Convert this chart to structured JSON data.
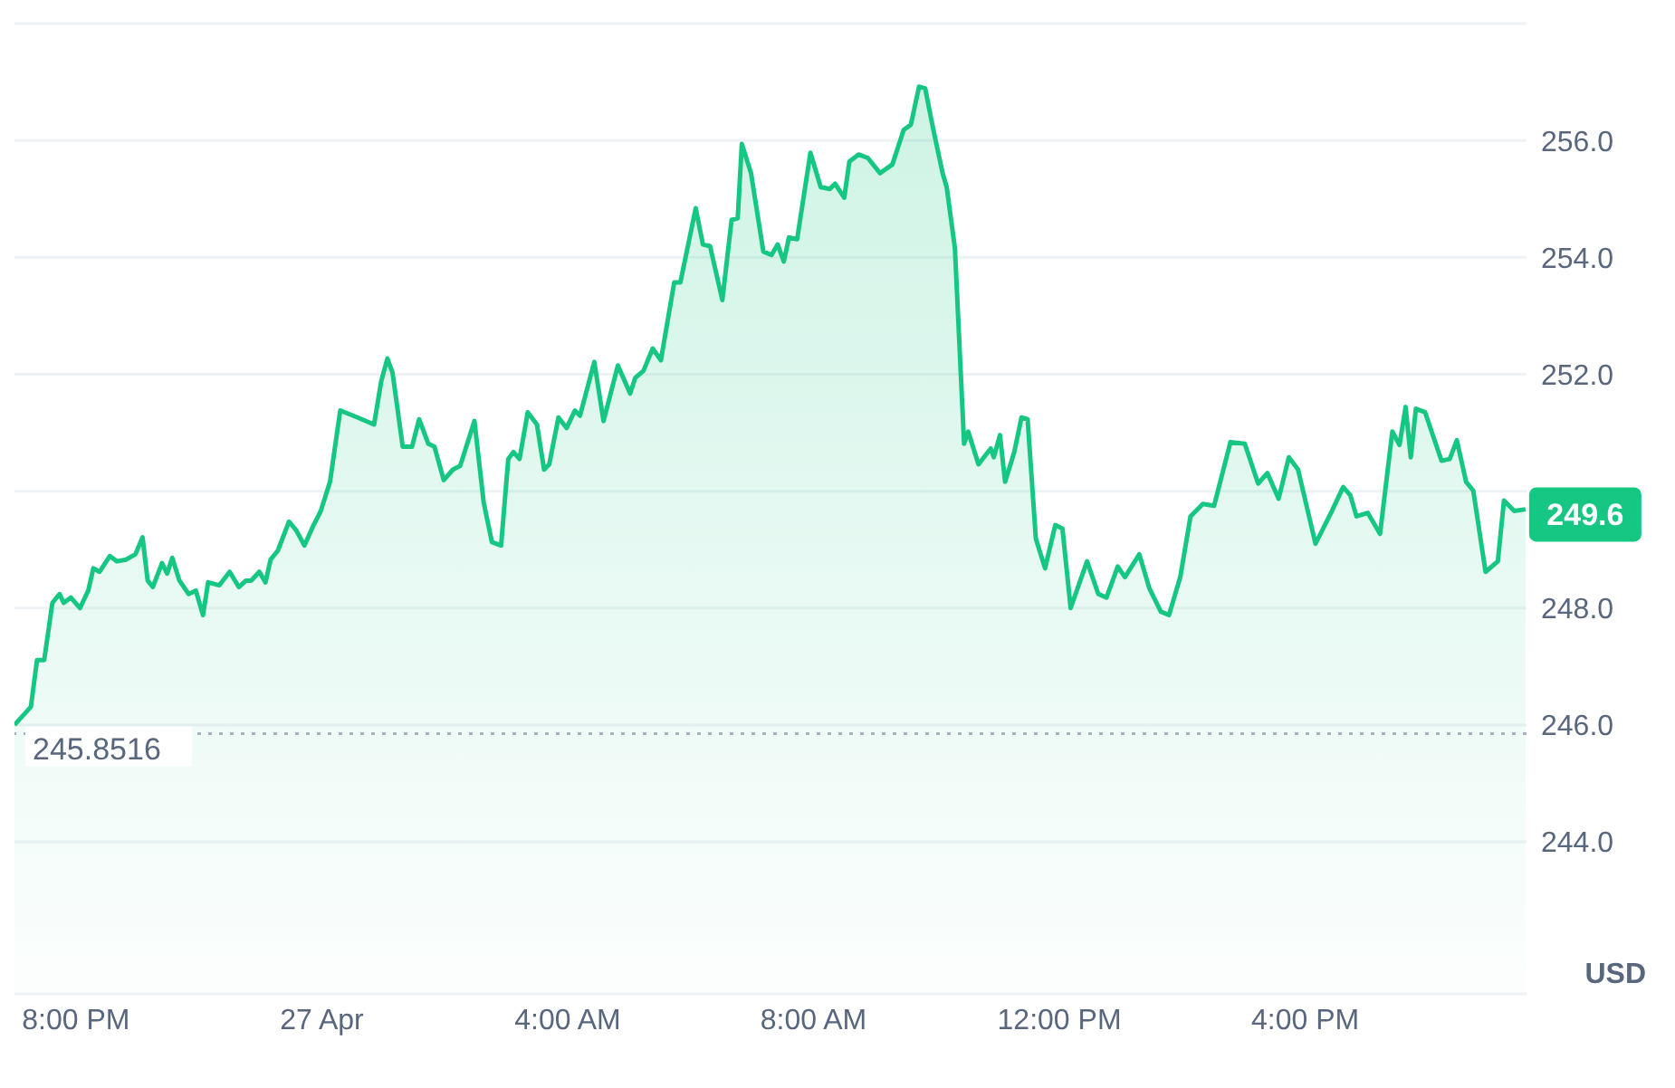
{
  "chart_data": {
    "type": "area",
    "ylabel": "USD",
    "color": "#16c784",
    "x": [
      "--04-26T19:00",
      "--04-26T19:16",
      "--04-26T19:22",
      "--04-26T19:29",
      "--04-26T19:37",
      "--04-26T19:44",
      "--04-26T19:48",
      "--04-26T19:55",
      "--04-26T20:04",
      "--04-26T20:12",
      "--04-26T20:17",
      "--04-26T20:23",
      "--04-26T20:33",
      "--04-26T20:40",
      "--04-26T20:49",
      "--04-26T20:58",
      "--04-26T21:05",
      "--04-26T21:10",
      "--04-26T21:15",
      "--04-26T21:24",
      "--04-26T21:29",
      "--04-26T21:34",
      "--04-26T21:41",
      "--04-26T21:50",
      "--04-26T21:57",
      "--04-26T22:04",
      "--04-26T22:09",
      "--04-26T22:20",
      "--04-26T22:30",
      "--04-26T22:39",
      "--04-26T22:46",
      "--04-26T22:51",
      "--04-26T22:59",
      "--04-26T23:05",
      "--04-26T23:10",
      "--04-26T23:17",
      "--04-26T23:28",
      "--04-26T23:35",
      "--04-26T23:43",
      "--04-26T23:52",
      "--04-26T23:59",
      "--04-27T00:08",
      "--04-27T00:18",
      "--04-27T00:35",
      "--04-27T00:51",
      "--04-27T00:58",
      "--04-27T01:04",
      "--04-27T01:09",
      "--04-27T01:19",
      "--04-27T01:28",
      "--04-27T01:35",
      "--04-27T01:44",
      "--04-27T01:50",
      "--04-27T01:59",
      "--04-27T02:08",
      "--04-27T02:15",
      "--04-27T02:29",
      "--04-27T02:38",
      "--04-27T02:46",
      "--04-27T02:55",
      "--04-27T03:02",
      "--04-27T03:07",
      "--04-27T03:13",
      "--04-27T03:21",
      "--04-27T03:30",
      "--04-27T03:37",
      "--04-27T03:42",
      "--04-27T03:51",
      "--04-27T03:59",
      "--04-27T04:07",
      "--04-27T04:12",
      "--04-27T04:26",
      "--04-27T04:35",
      "--04-27T04:49",
      "--04-27T05:01",
      "--04-27T05:06",
      "--04-27T05:14",
      "--04-27T05:23",
      "--04-27T05:31",
      "--04-27T05:44",
      "--04-27T05:50",
      "--04-27T06:05",
      "--04-27T06:12",
      "--04-27T06:19",
      "--04-27T06:31",
      "--04-27T06:40",
      "--04-27T06:46",
      "--04-27T06:50",
      "--04-27T06:59",
      "--04-27T07:11",
      "--04-27T07:19",
      "--04-27T07:25",
      "--04-27T07:31",
      "--04-27T07:36",
      "--04-27T07:44",
      "--04-27T07:57",
      "--04-27T08:07",
      "--04-27T08:16",
      "--04-27T08:21",
      "--04-27T08:30",
      "--04-27T08:35",
      "--04-27T08:44",
      "--04-27T08:53",
      "--04-27T09:05",
      "--04-27T09:17",
      "--04-27T09:28",
      "--04-27T09:35",
      "--04-27T09:43",
      "--04-27T09:49",
      "--04-27T09:57",
      "--04-27T10:06",
      "--04-27T10:10",
      "--04-27T10:18",
      "--04-27T10:27",
      "--04-27T10:31",
      "--04-27T10:41",
      "--04-27T10:53",
      "--04-27T10:56",
      "--04-27T11:02",
      "--04-27T11:07",
      "--04-27T11:16",
      "--04-27T11:23",
      "--04-27T11:29",
      "--04-27T11:37",
      "--04-27T11:46",
      "--04-27T11:56",
      "--04-27T12:03",
      "--04-27T12:11",
      "--04-27T12:27",
      "--04-27T12:38",
      "--04-27T12:46",
      "--04-27T12:57",
      "--04-27T13:04",
      "--04-27T13:18",
      "--04-27T13:28",
      "--04-27T13:39",
      "--04-27T13:47",
      "--04-27T13:58",
      "--04-27T14:08",
      "--04-27T14:20",
      "--04-27T14:31",
      "--04-27T14:47",
      "--04-27T15:01",
      "--04-27T15:14",
      "--04-27T15:23",
      "--04-27T15:34",
      "--04-27T15:44",
      "--04-27T15:53",
      "--04-27T16:10",
      "--04-27T16:26",
      "--04-27T16:37",
      "--04-27T16:44",
      "--04-27T16:50",
      "--04-27T17:01",
      "--04-27T17:13",
      "--04-27T17:25",
      "--04-27T17:32",
      "--04-27T17:38",
      "--04-27T17:43",
      "--04-27T17:48",
      "--04-27T17:57",
      "--04-27T18:13",
      "--04-27T18:21",
      "--04-27T18:28",
      "--04-27T18:37",
      "--04-27T18:44",
      "--04-27T18:56",
      "--04-27T19:08",
      "--04-27T19:14",
      "--04-27T19:24",
      "--04-27T19:35"
    ],
    "values": [
      246.0,
      246.31,
      247.11,
      247.11,
      248.09,
      248.24,
      248.09,
      248.18,
      248.0,
      248.3,
      248.68,
      248.62,
      248.89,
      248.8,
      248.83,
      248.92,
      249.21,
      248.47,
      248.36,
      248.77,
      248.59,
      248.86,
      248.47,
      248.24,
      248.3,
      247.88,
      248.44,
      248.39,
      248.62,
      248.36,
      248.47,
      248.47,
      248.62,
      248.44,
      248.83,
      248.98,
      249.48,
      249.33,
      249.07,
      249.42,
      249.66,
      250.16,
      251.38,
      251.26,
      251.14,
      251.88,
      252.27,
      252.03,
      250.76,
      250.76,
      251.23,
      250.81,
      250.76,
      250.19,
      250.37,
      250.43,
      251.2,
      249.81,
      249.13,
      249.07,
      250.55,
      250.67,
      250.55,
      251.35,
      251.14,
      250.37,
      250.46,
      251.26,
      251.08,
      251.38,
      251.29,
      252.21,
      251.2,
      252.15,
      251.67,
      251.94,
      252.06,
      252.44,
      252.24,
      253.57,
      253.57,
      254.84,
      254.22,
      254.19,
      253.27,
      254.64,
      254.67,
      255.94,
      255.44,
      254.1,
      254.04,
      254.22,
      253.93,
      254.34,
      254.31,
      255.79,
      255.2,
      255.17,
      255.26,
      255.02,
      255.64,
      255.76,
      255.7,
      255.44,
      255.59,
      256.18,
      256.27,
      256.92,
      256.89,
      256.18,
      255.44,
      255.2,
      254.16,
      250.81,
      251.02,
      250.46,
      250.73,
      250.58,
      250.96,
      250.16,
      250.67,
      251.26,
      251.23,
      249.19,
      248.68,
      249.42,
      249.36,
      248.0,
      248.8,
      248.24,
      248.18,
      248.71,
      248.53,
      248.92,
      248.33,
      247.94,
      247.88,
      248.53,
      249.57,
      249.78,
      249.75,
      250.84,
      250.81,
      250.13,
      250.31,
      249.87,
      250.58,
      250.37,
      249.1,
      249.66,
      250.07,
      249.93,
      249.57,
      249.63,
      249.27,
      251.02,
      250.79,
      251.44,
      250.58,
      251.41,
      251.35,
      250.52,
      250.55,
      250.87,
      250.16,
      250.01,
      248.62,
      248.8,
      249.84,
      249.66,
      249.69
    ],
    "xlim": [
      "--04-26T19:00",
      "--04-27T19:36"
    ],
    "xticks": [
      {
        "value": "--04-26T20:00",
        "label": "8:00 PM"
      },
      {
        "value": "--04-27T00:00",
        "label": "27 Apr"
      },
      {
        "value": "--04-27T04:00",
        "label": "4:00 AM"
      },
      {
        "value": "--04-27T08:00",
        "label": "8:00 AM"
      },
      {
        "value": "--04-27T12:00",
        "label": "12:00 PM"
      },
      {
        "value": "--04-27T16:00",
        "label": "4:00 PM"
      }
    ],
    "ylim": [
      241.4,
      258
    ],
    "yticks": [
      {
        "value": 244,
        "label": "244.0"
      },
      {
        "value": 246,
        "label": "246.0"
      },
      {
        "value": 248,
        "label": "248.0"
      },
      {
        "value": 250,
        "label": null
      },
      {
        "value": 252,
        "label": "252.0"
      },
      {
        "value": 254,
        "label": "254.0"
      },
      {
        "value": 256,
        "label": "256.0"
      }
    ],
    "grid": "y",
    "marker": "none",
    "line_style": "solid",
    "ref_lines": [
      {
        "axis": "y",
        "value": 245.8516,
        "label": "245.8516",
        "color": "#a6b0c3",
        "line_style": "dotted"
      }
    ],
    "annotations": [
      {
        "text": "249.6",
        "x": "--04-27T19:35",
        "y": 249.6
      }
    ]
  }
}
